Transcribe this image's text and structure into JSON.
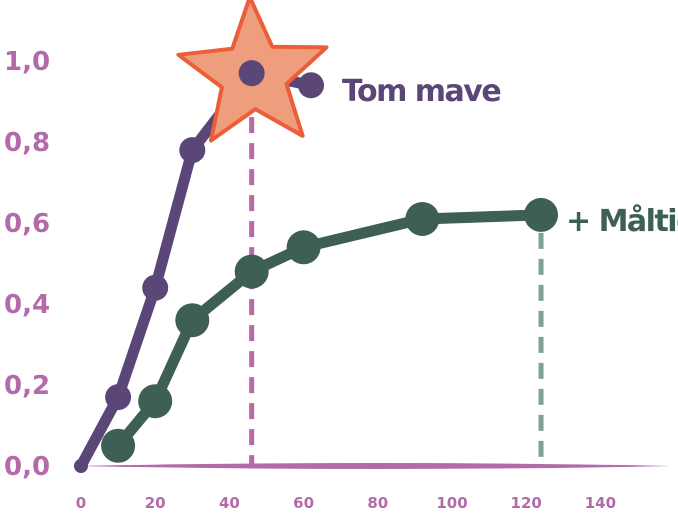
{
  "colors": {
    "axis_text": "#b36aa8",
    "axis_line": "#b36aa8",
    "fasting": "#5b4678",
    "meal": "#3e5f54",
    "fasting_guide": "#b86aa5",
    "meal_guide": "#7fa099",
    "star_fill": "#ee9e7c",
    "star_stroke": "#ec5d39"
  },
  "chart_data": {
    "type": "line",
    "xlim": [
      0,
      160
    ],
    "ylim": [
      0,
      1.0
    ],
    "x_ticks": [
      "0",
      "20",
      "40",
      "60",
      "80",
      "100",
      "120",
      "140"
    ],
    "y_ticks": [
      "0,0",
      "0,2",
      "0,4",
      "0,6",
      "0,8",
      "1,0"
    ],
    "x_tick_values": [
      0,
      20,
      40,
      60,
      80,
      100,
      120,
      140
    ],
    "y_tick_values": [
      0,
      0.2,
      0.4,
      0.6,
      0.8,
      1.0
    ],
    "series": [
      {
        "name": "Tom mave",
        "color_key": "fasting",
        "points": [
          [
            0,
            0.0
          ],
          [
            10,
            0.17
          ],
          [
            20,
            0.44
          ],
          [
            30,
            0.78
          ],
          [
            46,
            0.97
          ],
          [
            62,
            0.94
          ]
        ],
        "highlight_x": 46,
        "highlight_y": 0.97,
        "highlight_marker": "star"
      },
      {
        "name": "+ Måltid",
        "color_key": "meal",
        "points": [
          [
            10,
            0.05
          ],
          [
            20,
            0.16
          ],
          [
            30,
            0.36
          ],
          [
            46,
            0.48
          ],
          [
            60,
            0.54
          ],
          [
            92,
            0.61
          ],
          [
            124,
            0.62
          ]
        ],
        "highlight_x": 124,
        "highlight_y": 0.62
      }
    ]
  }
}
